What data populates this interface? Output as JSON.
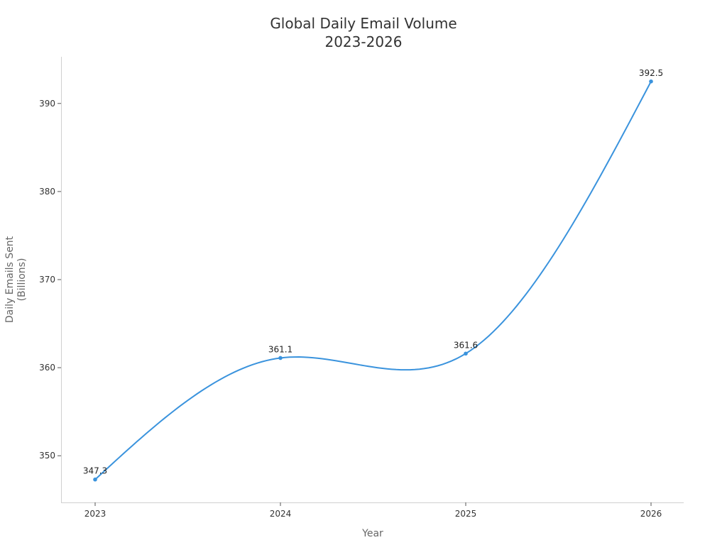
{
  "chart_data": {
    "type": "line",
    "title": [
      "Global Daily Email Volume",
      "2023-2026"
    ],
    "xlabel": "Year",
    "ylabel": [
      "Daily Emails Sent",
      "(Billions)"
    ],
    "x": [
      "2023",
      "2024",
      "2025",
      "2026"
    ],
    "series": [
      {
        "values": [
          347.3,
          361.1,
          361.6,
          392.5
        ],
        "color": "#3a93dd"
      }
    ],
    "data_labels": [
      "347.3",
      "361.1",
      "361.6",
      "392.5"
    ],
    "y_ticks": [
      350,
      360,
      370,
      380,
      390
    ],
    "ylim": [
      344.7,
      395.3
    ],
    "smooth": true,
    "grid": false,
    "legend": "none"
  }
}
